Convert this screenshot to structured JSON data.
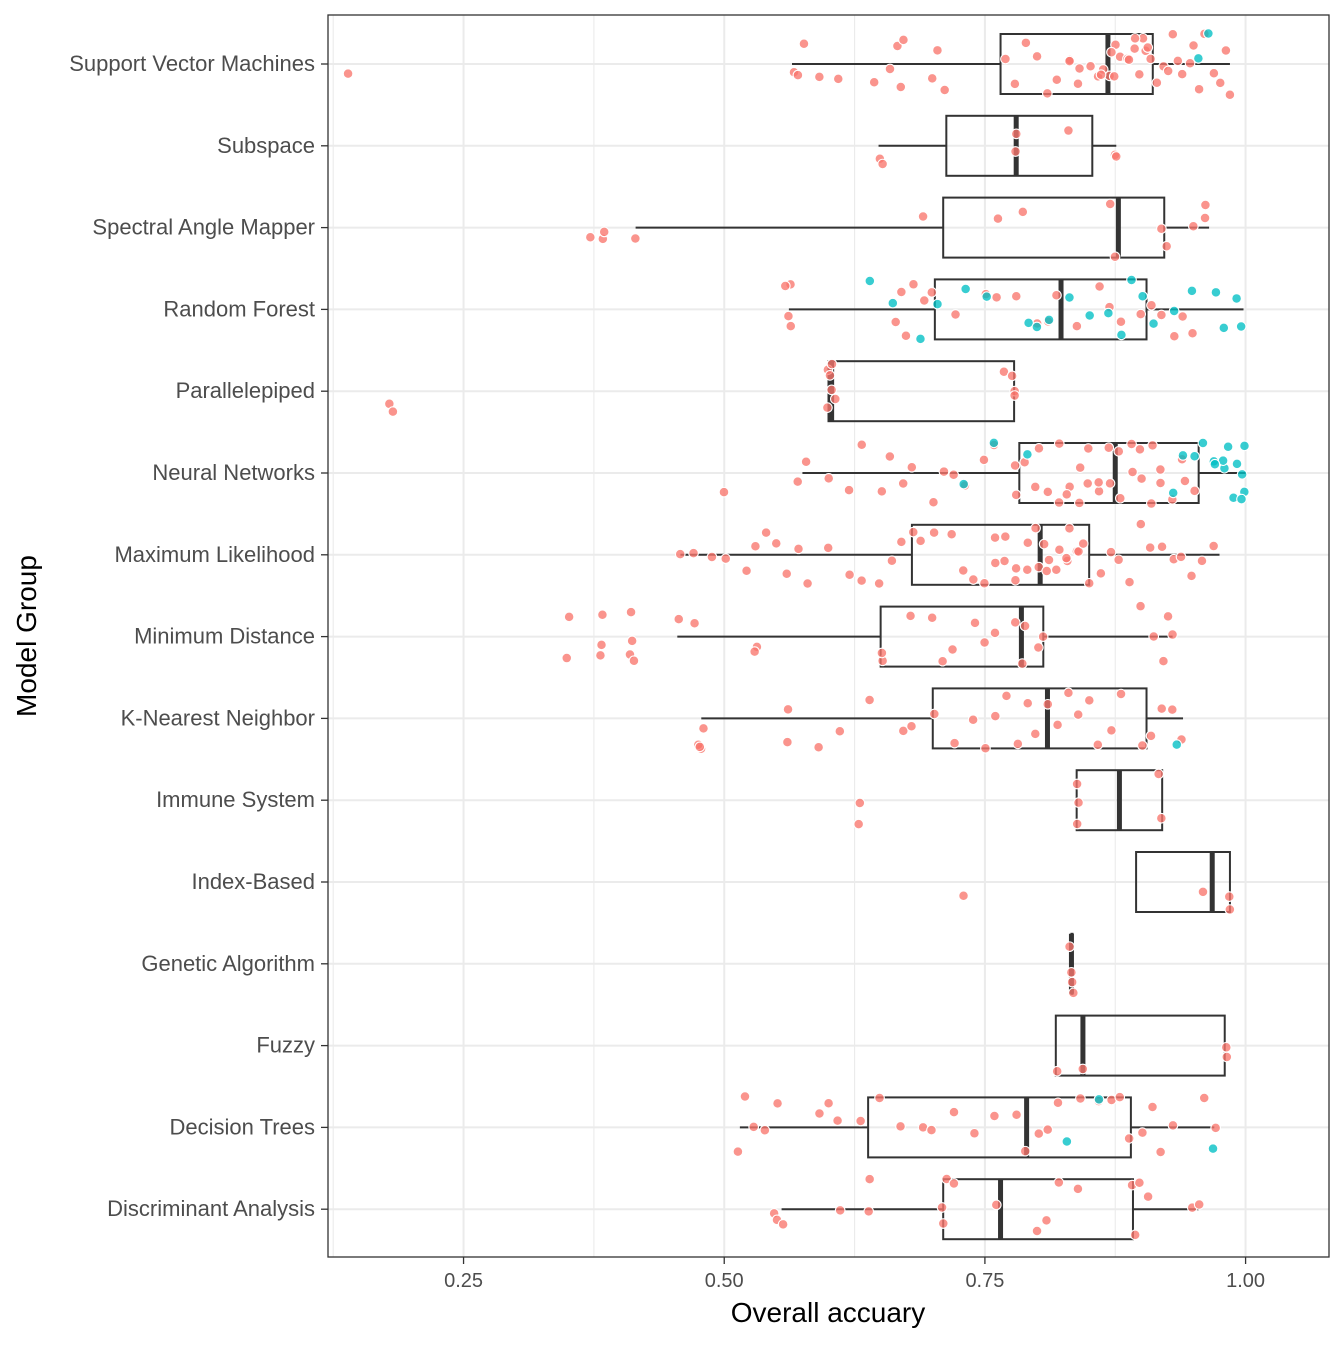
{
  "chart_data": {
    "type": "boxplot",
    "orientation": "horizontal",
    "xlabel": "Overall accuary",
    "ylabel": "Model Group",
    "xlim": [
      0.12,
      1.08
    ],
    "x_ticks": [
      0.25,
      0.5,
      0.75,
      1.0
    ],
    "x_tick_labels": [
      "0.25",
      "0.50",
      "0.75",
      "1.00"
    ],
    "grid": true,
    "colors": {
      "pointA": "#f8766d",
      "pointB": "#00bfc4",
      "box": "#333333",
      "grid": "#ebebeb",
      "panel_border": "#333333"
    },
    "categories": [
      {
        "name": "Support Vector Machines",
        "box": {
          "lower_whisker": 0.565,
          "q1": 0.765,
          "median": 0.868,
          "q3": 0.911,
          "upper_whisker": 0.985
        },
        "points_a": [
          0.14,
          0.565,
          0.57,
          0.575,
          0.59,
          0.61,
          0.645,
          0.66,
          0.665,
          0.668,
          0.672,
          0.7,
          0.705,
          0.71,
          0.77,
          0.78,
          0.79,
          0.8,
          0.81,
          0.82,
          0.83,
          0.84,
          0.85,
          0.86,
          0.865,
          0.87,
          0.875,
          0.88,
          0.885,
          0.89,
          0.895,
          0.9,
          0.905,
          0.91,
          0.915,
          0.92,
          0.925,
          0.93,
          0.935,
          0.94,
          0.945,
          0.95,
          0.955,
          0.96,
          0.97,
          0.975,
          0.98,
          0.985,
          0.875,
          0.86,
          0.84,
          0.9,
          0.895,
          0.83,
          0.87,
          0.905
        ],
        "points_b": [
          0.955,
          0.965
        ]
      },
      {
        "name": "Subspace",
        "box": {
          "lower_whisker": 0.648,
          "q1": 0.713,
          "median": 0.78,
          "q3": 0.853,
          "upper_whisker": 0.876
        },
        "points_a": [
          0.648,
          0.65,
          0.778,
          0.782,
          0.83,
          0.874,
          0.876
        ],
        "points_b": []
      },
      {
        "name": "Spectral Angle Mapper",
        "box": {
          "lower_whisker": 0.415,
          "q1": 0.71,
          "median": 0.878,
          "q3": 0.922,
          "upper_whisker": 0.965
        },
        "points_a": [
          0.37,
          0.385,
          0.386,
          0.415,
          0.69,
          0.763,
          0.787,
          0.87,
          0.874,
          0.918,
          0.925,
          0.95,
          0.96,
          0.963
        ],
        "points_b": []
      },
      {
        "name": "Random Forest",
        "box": {
          "lower_whisker": 0.562,
          "q1": 0.702,
          "median": 0.823,
          "q3": 0.905,
          "upper_whisker": 0.998
        },
        "points_a": [
          0.562,
          0.565,
          0.56,
          0.563,
          0.665,
          0.67,
          0.675,
          0.68,
          0.69,
          0.7,
          0.72,
          0.75,
          0.76,
          0.78,
          0.8,
          0.81,
          0.82,
          0.84,
          0.86,
          0.87,
          0.88,
          0.9,
          0.91,
          0.92,
          0.93,
          0.94,
          0.95
        ],
        "points_b": [
          0.64,
          0.66,
          0.69,
          0.705,
          0.73,
          0.75,
          0.79,
          0.8,
          0.81,
          0.83,
          0.85,
          0.87,
          0.88,
          0.89,
          0.9,
          0.91,
          0.93,
          0.95,
          0.97,
          0.98,
          0.99,
          0.995
        ]
      },
      {
        "name": "Parallelepiped",
        "box": {
          "lower_whisker": 0.6,
          "q1": 0.6,
          "median": 0.603,
          "q3": 0.778,
          "upper_whisker": 0.778
        },
        "points_a": [
          0.18,
          0.181,
          0.6,
          0.601,
          0.602,
          0.603,
          0.604,
          0.605,
          0.77,
          0.775,
          0.778,
          0.78
        ],
        "points_b": []
      },
      {
        "name": "Neural Networks",
        "box": {
          "lower_whisker": 0.575,
          "q1": 0.783,
          "median": 0.875,
          "q3": 0.955,
          "upper_whisker": 1.0
        },
        "points_a": [
          0.5,
          0.57,
          0.58,
          0.6,
          0.62,
          0.63,
          0.65,
          0.66,
          0.67,
          0.68,
          0.7,
          0.71,
          0.72,
          0.73,
          0.75,
          0.76,
          0.78,
          0.79,
          0.8,
          0.81,
          0.82,
          0.83,
          0.84,
          0.85,
          0.86,
          0.87,
          0.88,
          0.89,
          0.9,
          0.91,
          0.92,
          0.93,
          0.94,
          0.95,
          0.78,
          0.8,
          0.82,
          0.84,
          0.86,
          0.88,
          0.9,
          0.92,
          0.94,
          0.87,
          0.85,
          0.83,
          0.89,
          0.91
        ],
        "points_b": [
          0.73,
          0.76,
          0.79,
          0.93,
          0.94,
          0.95,
          0.96,
          0.97,
          0.98,
          0.985,
          0.99,
          0.995,
          1.0,
          1.0,
          0.995,
          0.99,
          0.98,
          0.97
        ]
      },
      {
        "name": "Maximum Likelihood",
        "box": {
          "lower_whisker": 0.458,
          "q1": 0.68,
          "median": 0.803,
          "q3": 0.85,
          "upper_whisker": 0.975
        },
        "points_a": [
          0.458,
          0.47,
          0.49,
          0.5,
          0.52,
          0.53,
          0.54,
          0.55,
          0.56,
          0.57,
          0.58,
          0.6,
          0.62,
          0.63,
          0.65,
          0.66,
          0.67,
          0.68,
          0.69,
          0.7,
          0.72,
          0.73,
          0.74,
          0.75,
          0.76,
          0.77,
          0.78,
          0.79,
          0.8,
          0.81,
          0.82,
          0.83,
          0.84,
          0.85,
          0.86,
          0.87,
          0.88,
          0.89,
          0.9,
          0.91,
          0.92,
          0.93,
          0.94,
          0.95,
          0.96,
          0.97,
          0.8,
          0.805,
          0.81,
          0.82,
          0.83,
          0.84,
          0.79,
          0.78,
          0.77,
          0.76,
          0.83,
          0.845
        ],
        "points_b": []
      },
      {
        "name": "Minimum Distance",
        "box": {
          "lower_whisker": 0.455,
          "q1": 0.65,
          "median": 0.785,
          "q3": 0.806,
          "upper_whisker": 0.93
        },
        "points_a": [
          0.35,
          0.351,
          0.38,
          0.381,
          0.382,
          0.41,
          0.411,
          0.412,
          0.413,
          0.455,
          0.47,
          0.53,
          0.531,
          0.65,
          0.652,
          0.68,
          0.7,
          0.71,
          0.72,
          0.74,
          0.75,
          0.76,
          0.78,
          0.785,
          0.79,
          0.8,
          0.805,
          0.9,
          0.91,
          0.92,
          0.925,
          0.93
        ],
        "points_b": []
      },
      {
        "name": "K-Nearest Neighbor",
        "box": {
          "lower_whisker": 0.478,
          "q1": 0.7,
          "median": 0.81,
          "q3": 0.905,
          "upper_whisker": 0.94
        },
        "points_a": [
          0.476,
          0.477,
          0.478,
          0.479,
          0.56,
          0.562,
          0.59,
          0.61,
          0.64,
          0.67,
          0.68,
          0.7,
          0.72,
          0.74,
          0.75,
          0.76,
          0.77,
          0.78,
          0.79,
          0.8,
          0.81,
          0.82,
          0.83,
          0.84,
          0.85,
          0.86,
          0.87,
          0.88,
          0.9,
          0.91,
          0.92,
          0.93,
          0.94
        ],
        "points_b": [
          0.935
        ]
      },
      {
        "name": "Immune System",
        "box": {
          "lower_whisker": 0.838,
          "q1": 0.838,
          "median": 0.879,
          "q3": 0.92,
          "upper_whisker": 0.92
        },
        "points_a": [
          0.628,
          0.629,
          0.838,
          0.839,
          0.84,
          0.918,
          0.92
        ],
        "points_b": []
      },
      {
        "name": "Index-Based",
        "box": {
          "lower_whisker": 0.895,
          "q1": 0.895,
          "median": 0.968,
          "q3": 0.985,
          "upper_whisker": 0.985
        },
        "points_a": [
          0.73,
          0.96,
          0.984,
          0.986
        ],
        "points_b": []
      },
      {
        "name": "Genetic Algorithm",
        "box": {
          "lower_whisker": 0.833,
          "q1": 0.833,
          "median": 0.833,
          "q3": 0.834,
          "upper_whisker": 0.834
        },
        "points_a": [
          0.833,
          0.833,
          0.834,
          0.834
        ],
        "points_b": []
      },
      {
        "name": "Fuzzy",
        "box": {
          "lower_whisker": 0.818,
          "q1": 0.818,
          "median": 0.844,
          "q3": 0.98,
          "upper_whisker": 0.98
        },
        "points_a": [
          0.818,
          0.843,
          0.98,
          0.981
        ],
        "points_b": []
      },
      {
        "name": "Decision Trees",
        "box": {
          "lower_whisker": 0.515,
          "q1": 0.638,
          "median": 0.79,
          "q3": 0.89,
          "upper_whisker": 0.97
        },
        "points_a": [
          0.515,
          0.52,
          0.53,
          0.54,
          0.55,
          0.59,
          0.6,
          0.61,
          0.63,
          0.65,
          0.67,
          0.69,
          0.7,
          0.72,
          0.74,
          0.76,
          0.78,
          0.79,
          0.8,
          0.81,
          0.82,
          0.84,
          0.86,
          0.87,
          0.88,
          0.89,
          0.9,
          0.91,
          0.92,
          0.93,
          0.96,
          0.97
        ],
        "points_b": [
          0.83,
          0.86,
          0.97
        ]
      },
      {
        "name": "Discriminant Analysis",
        "box": {
          "lower_whisker": 0.555,
          "q1": 0.71,
          "median": 0.765,
          "q3": 0.892,
          "upper_whisker": 0.955
        },
        "points_a": [
          0.547,
          0.55,
          0.555,
          0.613,
          0.64,
          0.641,
          0.71,
          0.712,
          0.715,
          0.72,
          0.76,
          0.8,
          0.81,
          0.82,
          0.84,
          0.89,
          0.895,
          0.9,
          0.905,
          0.95,
          0.955
        ],
        "points_b": []
      }
    ]
  }
}
